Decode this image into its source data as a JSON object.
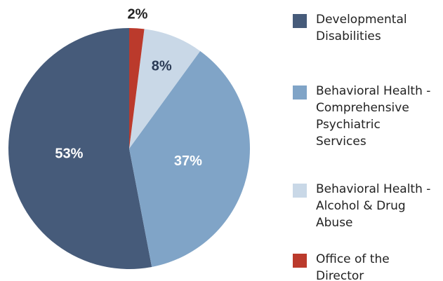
{
  "chart_data": {
    "type": "pie",
    "categories": [
      "Developmental Disabilities",
      "Behavioral Health - Comprehensive Psychiatric Services",
      "Behavioral Health - Alcohol & Drug Abuse",
      "Office of the Director"
    ],
    "values": [
      53,
      37,
      8,
      2
    ],
    "value_labels": [
      "53%",
      "37%",
      "8%",
      "2%"
    ],
    "colors": [
      "#465b7a",
      "#80a4c7",
      "#c9d8e7",
      "#bb3a2c"
    ],
    "direction": "counterclockwise",
    "start_angle": 0,
    "legend": "right"
  }
}
